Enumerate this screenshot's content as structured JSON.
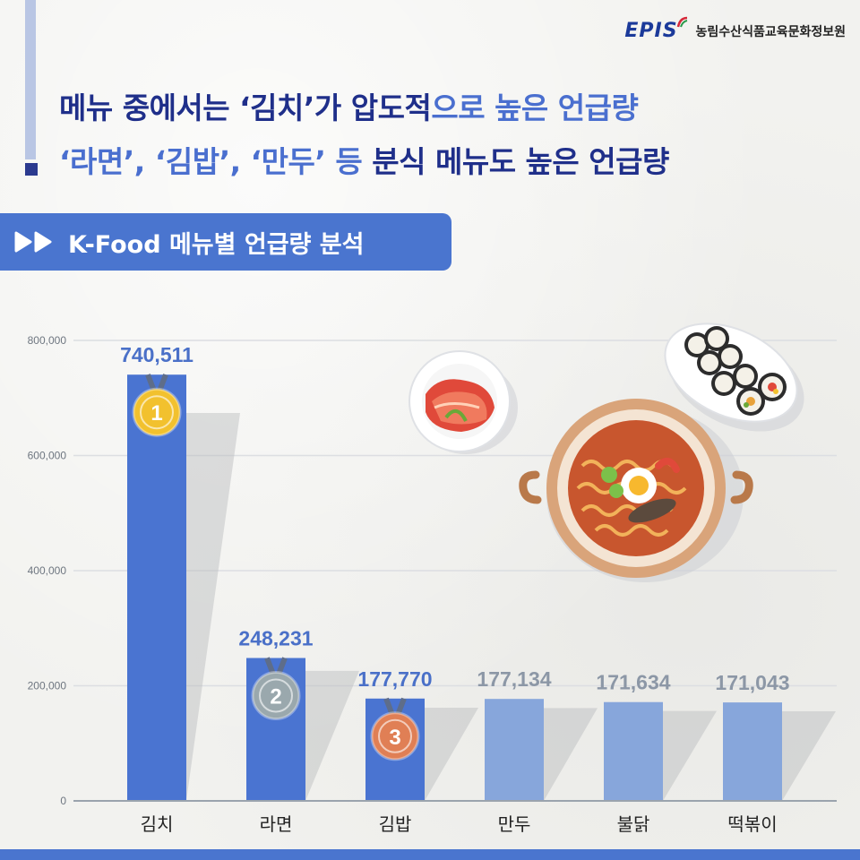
{
  "brand": {
    "logo_text": "EPIS",
    "org_name": "농림수산식품교육문화정보원"
  },
  "headline": {
    "line1_part1": "메뉴 중에서는 ‘김치’가 압도적",
    "line1_part2": "으로 높은 언급량",
    "line2_part1": "‘라면’, ‘김밥’, ‘만두’ 등 ",
    "line2_part2": "분식 메뉴도 높은 언급량"
  },
  "section": {
    "title": "K-Food 메뉴별 언급량 분석"
  },
  "colors": {
    "bar_top3": "#4a74d1",
    "bar_rest": "#87a6db",
    "label_top3": "#4a70c8",
    "label_rest": "#8c97a6",
    "headline_light": "#4a6fcf",
    "headline_dark": "#1f2f8a",
    "medal_gold": "#f2c12e",
    "medal_silver": "#9aa8ad",
    "medal_bronze": "#e07f55"
  },
  "medals": [
    "1",
    "2",
    "3"
  ],
  "chart_data": {
    "type": "bar",
    "categories": [
      "김치",
      "라면",
      "김밥",
      "만두",
      "불닭",
      "떡볶이"
    ],
    "values": [
      740511,
      248231,
      177770,
      177134,
      171634,
      171043
    ],
    "value_labels": [
      "740,511",
      "248,231",
      "177,770",
      "177,134",
      "171,634",
      "171,043"
    ],
    "ytick_values": [
      0,
      200000,
      400000,
      600000,
      800000
    ],
    "ytick_labels": [
      "0",
      "200,000",
      "400,000",
      "600,000",
      "800,000"
    ],
    "ylim": [
      0,
      800000
    ],
    "grid": true,
    "legend": "none"
  }
}
